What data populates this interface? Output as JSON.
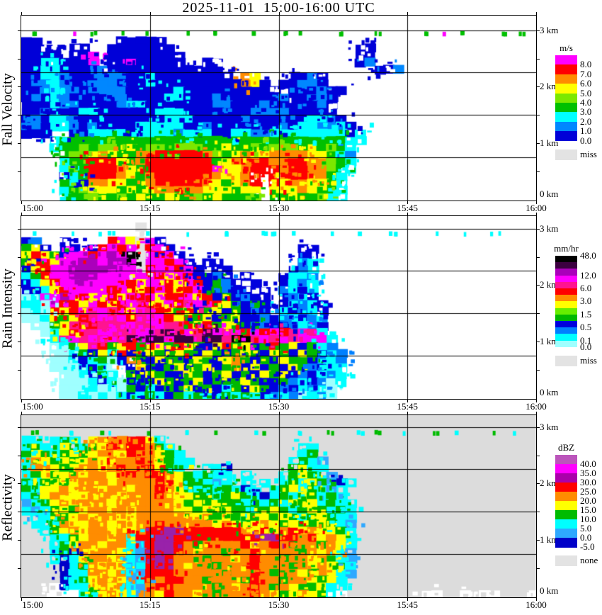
{
  "title": "2025-11-01  15:00-16:00 UTC",
  "chart_data": [
    {
      "type": "heatmap",
      "name": "fall-velocity",
      "ylabel": "Fall Velocity",
      "x_tick_labels": [
        "15:00",
        "15:15",
        "15:30",
        "15:45",
        "16:00"
      ],
      "x_tick_minutes": [
        0,
        15,
        30,
        45,
        60
      ],
      "height_labels": [
        "0 km",
        "1 km",
        "2 km",
        "3 km"
      ],
      "height_range_km": [
        0,
        3.27
      ],
      "gridline_heights_km": [
        3.0,
        2.25,
        1.5,
        0.75
      ],
      "background": "#FFFFFF",
      "colorbar": {
        "unit": "m/s",
        "band_colors": [
          "#FF00FF",
          "#FF0000",
          "#FF8C00",
          "#FFFF00",
          "#7CE800",
          "#00C000",
          "#00FFFF",
          "#0087FF",
          "#0000D8"
        ],
        "boundary_labels": [
          null,
          "8.0",
          "7.0",
          "6.0",
          "5.0",
          "4.0",
          "3.0",
          "2.0",
          "1.0",
          "0.0"
        ],
        "extra_band": {
          "color": "#E3E3E3",
          "label": "miss"
        }
      },
      "palette": {
        "b": "#0000D8",
        "d": "#0087FF",
        "c": "#00FFFF",
        "G": "#00C000",
        "C": "#7CE800",
        "Y": "#FFFF00",
        "O": "#FF8C00",
        "R": "#FF0000",
        "M": "#FF00FF"
      },
      "speck_row": 2,
      "grid": [
        "......................................................",
        "......................................................",
        ".G...M.G..G..G...G..G...G..G.G...G...G....G.M.G...G.G.",
        "bb........bbbbb.......................................",
        "bbbb.bb..bbbbbbb...................bb.................",
        "bbbb.bbM.bbbbbbbb..................bb.................",
        "bbccbbbM.bbMbbbbb..bb..............bd.................",
        "bbccbbbbdbbbbbbbbbbbb................bbd..............",
        "bbccdbbbdddbbcbbbbbbbb.OY...bbdb......................",
        "bddcdbbdddbbbcbbbbbbbbbOYb.bbddb......................",
        "bbdcddbddddbbbbbcbbbbbbbbbb.bdbdbb....................",
        "bdbcdbbbbddbbbbccbbbdbbbbbbdbbddb.....................",
        "bbbcddbbbbdccbbbbbbbddbbbdbbbbbdb.....................",
        "bbdbbbccbbbbbbcccbbbbbbbddddbbbbb.....................",
        "bdbccdbbbbbbbbbcccbbbbbdbbbbbbccdb....................",
        "ddbccdbdbbbbcccccbbdbbbbbbbdbccddcb...................",
        "bbb..bbccccbccccdcccbbccddccccccccbc..................",
        "...cGGGGGGGGGGGGGGGGGGGGGGGGGGGGGGcc..................",
        "...cGGCGCCGYGCCGCCCGGYGGCGCCCGYGCGc...................",
        "....GCCYOYGGOORRRRROCGYOYYOOOOYYGcd...................",
        "....cGGRRRYGORRRRRRRGYORRROORROOCGc...................",
        "....cCGRRROYGRRRRRRRMYYORRRORROOCGc...................",
        "....bcGRRROYGORRRRRROYYOR.RORROOGc....................",
        "....GcbOOYYGGORRRRROYGYOR.RYOOYYGc....................",
        "....cGCYYYGYGYOOOOOYYYGYY.YYYOYGGc....................",
        "....cGGCGGCGYGGYGGCGYGGGC.GGYGGCcc...................."
      ],
      "grid_rows_reversed_note": "rows top(3.27km) to bottom(0km), cols 15:00 to 16:00"
    },
    {
      "type": "heatmap",
      "name": "rain-intensity",
      "ylabel": "Rain Intensity",
      "x_tick_labels": [
        "15:00",
        "15:15",
        "15:30",
        "15:45",
        "16:00"
      ],
      "x_tick_minutes": [
        0,
        15,
        30,
        45,
        60
      ],
      "height_labels": [
        "0 km",
        "1 km",
        "2 km",
        "3 km"
      ],
      "height_range_km": [
        0,
        3.23
      ],
      "gridline_heights_km": [
        3.0,
        2.25,
        1.5,
        0.75
      ],
      "background": "#FFFFFF",
      "colorbar": {
        "unit": "mm/hr",
        "band_colors": [
          "#000000",
          "#3C0040",
          "#AA00BB",
          "#FF00FF",
          "#FF1490",
          "#FF0000",
          "#FF8C00",
          "#FFFF00",
          "#66EE00",
          "#00B800",
          "#0000DD",
          "#0080FF",
          "#00FFFF",
          "#9FFFFF"
        ],
        "boundary_labels": [
          "48.0",
          null,
          null,
          "12.0",
          null,
          "6.0",
          null,
          "3.0",
          null,
          "1.5",
          null,
          "0.5",
          null,
          "0.1",
          "0.0"
        ],
        "extra_band": {
          "color": "#E3E3E3",
          "label": "miss"
        }
      },
      "palette": {
        "B": "#0000DD",
        "d": "#0080FF",
        "c": "#00FFFF",
        "a": "#9FFFFF",
        "G": "#00B800",
        "C": "#66EE00",
        "Y": "#FFFF00",
        "O": "#FF8C00",
        "R": "#FF0000",
        "h": "#FF1490",
        "M": "#FF00FF",
        "p": "#AA00BB",
        "P": "#3A0040",
        "K": "#000000",
        "m": "#E3E3E3"
      },
      "speck_row": 2,
      "grid": [
        "......................................................",
        "............m.........................................",
        ".c...c..cc..mc...c...c...cc.c...c..c..cc...c..c..cc...",
        "Bd..B....RMYmMB.......................................",
        "GYB.BB.BRMRMmRMB.............BB.......................",
        "YRYGBMMRMpMKmMRMB............BB.......................",
        "GRRYMMppMppKmMMRMB.BB........dc.......................",
        "BYRMMpppppMMmRMMRMB.BB......Bdc.......................",
        "cGRMMpppMMMMMMRYMRBBdB.B...Bccd.......................",
        "BcYRMMpMMMMRYMMRYMRBGdB.B..Bcdc.......................",
        "BBcYRMMMMRMRYRMRYRMBGdBB.B.dcBc.......................",
        "acMMpMRYMRYMRMYRRMYRBGBdBB.BdcB.......................",
        "ccaMRRYMRYRMhRYMRhMhRYGBGB.BcdcB......................",
        "acaRYRMhMhRYMhRYGYBGYBGBdB.cBdcB......................",
        "aacYGYRhMhMRhhMRYRGYBGYBBdBdcBdc......................",
        ".aaGYhRRhhhMhMMhhRYRGYGBGdBBdcdB......................",
        "..acYRhhMMhhMMhPhMhPMhMRMRMRhMhc......................",
        "...chMhMhMhPMPPMPPhPPhKKhMhMhMMMc.....................",
        "...acGYhRGYRGRYGRYGBYRGYBGRGYBGcd.....................",
        "...aacGBYcRBGYGBYGBYGBGYGBYGBYGBcd....................",
        "...aacBcGaBOGBYGGBYGBYOGBGBYGGBdcd....................",
        "...aaacBca.BYGBGYBGYBGOBYBGBYGdBcc....................",
        "....aacBGc.GBYGBBYGBGYBGBYGYBdBcdc....................",
        "....aaacBcaBGBYGBGYBGBGYGBBGdcBdac....................",
        "....aaacacaGBcBGBYBGBcGBYGBdBcdca.....................",
        "....aacacacBcGcBGcGcBGcGcBdcdacda....................."
      ],
      "grid_rows_reversed_note": "rows top(3.23km) to bottom(0km), cols 15:00 to 16:00"
    },
    {
      "type": "heatmap",
      "name": "reflectivity",
      "ylabel": "Reflectivity",
      "x_tick_labels": [
        "15:00",
        "15:15",
        "15:30",
        "15:45",
        "16:00"
      ],
      "x_tick_minutes": [
        0,
        15,
        30,
        45,
        60
      ],
      "height_labels": [
        "0 km",
        "1 km",
        "2 km",
        "3 km"
      ],
      "height_range_km": [
        0,
        3.22
      ],
      "gridline_heights_km": [
        3.0,
        2.25,
        1.5,
        0.75
      ],
      "background": "#DCDCDC",
      "colorbar": {
        "unit": "dBZ",
        "band_colors": [
          "#BB55BB",
          "#FF00FF",
          "#AA00AA",
          "#FF0000",
          "#FF8C00",
          "#FFFF00",
          "#00BB00",
          "#00FFFF",
          "#2EA8FF",
          "#0000C8"
        ],
        "boundary_labels": [
          null,
          "40.0",
          "35.0",
          "30.0",
          "25.0",
          "20.0",
          "15.0",
          "10.0",
          "5.0",
          "0.0",
          "-5.0"
        ],
        "extra_band": {
          "color": "#E3E3E3",
          "label": "none"
        }
      },
      "palette": {
        "b": "#0000C8",
        "d": "#2EA8FF",
        "c": "#00FFFF",
        "G": "#00BB00",
        "Y": "#FFFF00",
        "O": "#FF8C00",
        "R": "#FF0000",
        "p": "#9922AA",
        "M": "#FF00FF",
        "o": "#BB55BB",
        "w": "#FFFFFF"
      },
      "speck_row": 2,
      "grid": [
        "......................................................",
        "......................................................",
        ".G...c..Gc...G...c..G...cG...c..G..c.G..c..G.c...G.c..",
        "cc.cGc.YORORRYc.......................................",
        "cGccYGcOYRORROGc.............cc.......................",
        "GYGcGYGYOOYROOYGc............cG.......................",
        "cOYGYGYOYROOROYGcc..........cGcd......................",
        "cOOYGYOOYOROORYGc..ccb......GYcc......................",
        "cGYGYOYOOYORORROYGcGcc.c...cGYGcd.....................",
        "GcGYGYOOOYOOOOROYGGcdc.c.c.cGcYGcbc...................",
        "GcYYOYOOYOOYOOROYGcGcGcbc.cGYcGcdc....................",
        "cGYOOYYOOOYOOOROYYGGcGYGcbcGcYGcGc....................",
        "dcGYOYOOOYOOOOOOYGYGYGGcGcGcYGYcGcc...................",
        "cdcGYGYOOYOYOOOOYYGYGYGGcGYGcGYGcGc...................",
        ".ccGGYOYOOYYOOOOOOYOGYGYGYGYGcGYGcc...................",
        ".ccGOYYOOYOYOOROOOOOYOYGYOYGYGGYGcd...................",
        "..cGYOYOOYOYORRppRRRRRROYRYORYOYYGc...................",
        "...ccGYOOYOcRRppRRRRRRRRRppRRORYOYc...................",
        "...cGYOOYOOcdRppROGOOOORYOROGOOGOYc...................",
        "...cGbOYOOYcdRppROYOOGOOROOOOGOYOYd...................",
        "...cbcYOOYOcdRpROOOGOOYOROOGOOYOGcd...................",
        "....bcGOYOYdcRpROYOOGOOOROOOGOYOYGc...................",
        "....bccOOYOcdRRROOOOOGOOROGOOYGOYcd...................",
        "....bcGYOOYdcRORROOGOOOGROOGOOYGYc....................",
        "...wbccYOYOcdORROOOOGOYOROGOYGGYcc....................",
        "...wwwcGYOYcdOYROOYOGOOOROYGYOYGcw........ww..w.ww...ww."
      ],
      "grid_rows_reversed_note": "rows top(3.22km) to bottom(0km), cols 15:00 to 16:00"
    }
  ]
}
